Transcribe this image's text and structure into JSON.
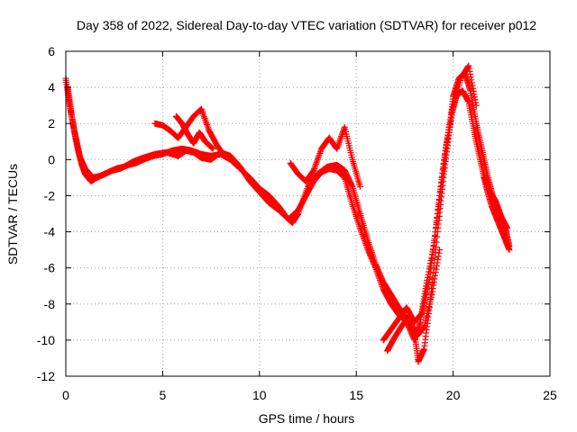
{
  "chart_data": {
    "type": "scatter",
    "title": "Day 358 of 2022, Sidereal Day-to-day VTEC variation (SDTVAR) for receiver p012",
    "xlabel": "GPS time / hours",
    "ylabel": "SDTVAR / TECUs",
    "xlim": [
      0,
      25
    ],
    "ylim": [
      -12,
      6
    ],
    "xticks": [
      0,
      5,
      10,
      15,
      20,
      25
    ],
    "yticks": [
      -12,
      -10,
      -8,
      -6,
      -4,
      -2,
      0,
      2,
      4,
      6
    ],
    "grid": true,
    "marker": "plus",
    "color": "#ff0000",
    "series": [
      {
        "x": [
          0.0,
          0.2,
          0.4,
          0.6,
          0.8,
          1.0,
          1.3,
          1.6,
          2.0,
          2.4,
          2.8,
          3.2,
          3.6,
          4.0,
          4.5,
          5.0,
          5.5,
          6.0,
          6.5,
          7.0,
          7.5,
          8.0,
          8.5,
          9.0,
          9.5,
          10.0,
          10.5,
          11.0,
          11.4,
          11.7,
          12.0,
          12.5,
          13.0,
          13.5,
          14.0,
          14.4,
          14.8,
          15.2,
          15.6,
          16.0,
          16.4,
          16.8,
          17.2,
          17.6,
          18.0,
          18.2,
          18.5,
          18.8,
          19.2,
          19.5,
          19.8,
          20.0,
          20.3,
          20.6,
          20.9,
          21.2,
          21.5,
          21.8,
          22.1,
          22.4,
          22.7,
          22.9
        ],
        "y": [
          4.5,
          3.0,
          1.8,
          0.8,
          -0.2,
          -0.8,
          -1.2,
          -1.0,
          -0.8,
          -0.6,
          -0.5,
          -0.3,
          -0.2,
          0.0,
          0.2,
          0.3,
          0.5,
          0.6,
          0.5,
          0.3,
          0.2,
          0.3,
          0.0,
          -0.5,
          -1.0,
          -1.6,
          -2.0,
          -2.6,
          -3.2,
          -3.5,
          -3.0,
          -1.5,
          -0.8,
          -0.4,
          -0.3,
          -0.6,
          -1.5,
          -3.0,
          -4.5,
          -5.8,
          -6.8,
          -7.5,
          -8.2,
          -8.8,
          -9.5,
          -11.2,
          -10.5,
          -8.0,
          -4.0,
          -1.0,
          1.5,
          3.5,
          4.5,
          4.8,
          3.8,
          2.0,
          0.5,
          -1.0,
          -2.2,
          -3.0,
          -3.8,
          -4.8
        ]
      },
      {
        "x": [
          0.1,
          0.3,
          0.5,
          0.7,
          1.0,
          1.4,
          1.8,
          2.2,
          2.6,
          3.0,
          3.5,
          4.0,
          4.6,
          5.2,
          5.8,
          6.2,
          6.6,
          7.0,
          7.5,
          8.0,
          8.5,
          9.0,
          9.5,
          10.0,
          10.5,
          11.0,
          11.5,
          12.0,
          12.4,
          12.8,
          13.2,
          13.6,
          14.0,
          14.4,
          14.8,
          15.2,
          15.6,
          16.0,
          16.4,
          16.8,
          17.2,
          17.6,
          18.0,
          18.3,
          18.6,
          19.0,
          19.3,
          19.6,
          19.9,
          20.2,
          20.5,
          20.8,
          21.1,
          21.4,
          21.7,
          22.0,
          22.3,
          22.6,
          22.9
        ],
        "y": [
          4.0,
          2.5,
          1.2,
          0.2,
          -0.5,
          -1.0,
          -0.9,
          -0.7,
          -0.5,
          -0.4,
          -0.1,
          0.1,
          0.3,
          0.4,
          0.2,
          0.5,
          0.4,
          0.1,
          0.0,
          0.4,
          0.2,
          -0.4,
          -1.2,
          -1.8,
          -2.4,
          -2.8,
          -3.3,
          -2.8,
          -2.0,
          -1.2,
          -0.7,
          -0.5,
          -0.6,
          -1.0,
          -2.5,
          -3.8,
          -5.0,
          -6.0,
          -7.2,
          -8.0,
          -8.6,
          -9.0,
          -10.0,
          -9.0,
          -7.0,
          -4.8,
          -2.0,
          0.5,
          2.5,
          3.6,
          3.8,
          3.2,
          1.5,
          0.0,
          -1.5,
          -2.6,
          -3.4,
          -4.2,
          -5.0
        ]
      },
      {
        "x": [
          4.6,
          5.0,
          5.4,
          5.8,
          6.2,
          6.6,
          7.0,
          7.4,
          7.8,
          8.2
        ],
        "y": [
          2.0,
          1.9,
          1.6,
          1.2,
          1.8,
          2.4,
          2.8,
          1.6,
          0.8,
          0.2
        ]
      },
      {
        "x": [
          5.7,
          6.0,
          6.3,
          6.6,
          6.9,
          7.2,
          7.6
        ],
        "y": [
          2.4,
          2.0,
          1.4,
          0.9,
          1.5,
          1.0,
          0.6
        ]
      },
      {
        "x": [
          11.6,
          12.0,
          12.4,
          12.8,
          13.2,
          13.6,
          14.0,
          14.4,
          14.8,
          15.2
        ],
        "y": [
          -0.2,
          -0.8,
          -1.2,
          -0.6,
          0.6,
          1.2,
          0.6,
          1.8,
          0.0,
          -1.5
        ]
      },
      {
        "x": [
          16.4,
          16.8,
          17.2,
          17.6,
          18.0,
          18.4,
          18.8,
          19.2,
          19.6,
          20.0,
          20.4,
          20.8,
          21.2
        ],
        "y": [
          -10.0,
          -9.4,
          -8.8,
          -8.2,
          -9.0,
          -8.5,
          -6.5,
          -3.0,
          0.5,
          2.8,
          4.5,
          5.2,
          3.0
        ]
      },
      {
        "x": [
          16.6,
          16.9,
          17.3,
          17.7,
          18.1,
          18.5,
          18.9,
          19.3
        ],
        "y": [
          -10.6,
          -10.0,
          -9.3,
          -8.7,
          -9.8,
          -9.3,
          -7.5,
          -5.0
        ]
      },
      {
        "x": [
          21.6,
          21.9,
          22.2,
          22.5,
          22.8
        ],
        "y": [
          -1.0,
          -1.8,
          -2.3,
          -3.2,
          -3.8
        ]
      }
    ]
  }
}
